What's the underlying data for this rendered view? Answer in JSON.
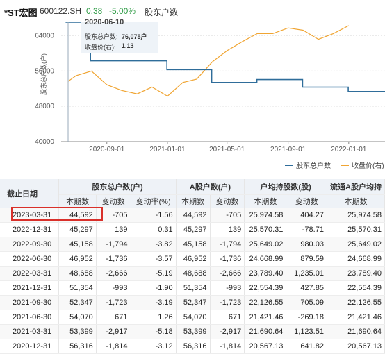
{
  "header": {
    "name": "*ST宏图",
    "code": "600122.SH",
    "price": "0.38",
    "change_pct": "-5.00%",
    "tab": "股东户数"
  },
  "tooltip": {
    "date": "2020-06-10",
    "holders_label": "股东总户数:",
    "holders_value": "76,075户",
    "price_label": "收盘价(右):",
    "price_value": "1.13"
  },
  "colors": {
    "holders_line": "#2f6d9a",
    "price_line": "#f0a533",
    "up": "#2e9b45",
    "highlight": "#d9302a"
  },
  "chart_data": {
    "type": "line",
    "ylabel": "股东总户数(户)",
    "yticks": [
      "64000",
      "56000",
      "48000",
      "40000"
    ],
    "ylim": [
      40000,
      68000
    ],
    "xticks": [
      "2020-09-01",
      "2021-01-01",
      "2021-05-01",
      "2021-09-01",
      "2022-01-01"
    ],
    "legend_position": "bottom-right",
    "series": [
      {
        "name": "股东总户数",
        "axis": "left",
        "step": true,
        "points": [
          [
            "2020-06-10",
            76075
          ],
          [
            "2020-07-30",
            58316
          ],
          [
            "2020-12-31",
            56316
          ],
          [
            "2021-03-31",
            53399
          ],
          [
            "2021-06-30",
            54070
          ],
          [
            "2021-09-30",
            52347
          ],
          [
            "2021-12-31",
            51354
          ],
          [
            "2022-03-31",
            48688
          ],
          [
            "2022-06-30",
            46952
          ]
        ]
      },
      {
        "name": "收盘价(右)",
        "axis": "right",
        "points": [
          [
            "2020-06-15",
            1.13
          ],
          [
            "2020-07-01",
            1.18
          ],
          [
            "2020-08-01",
            1.22
          ],
          [
            "2020-09-01",
            1.1
          ],
          [
            "2020-10-01",
            1.05
          ],
          [
            "2020-11-01",
            1.02
          ],
          [
            "2020-12-01",
            1.08
          ],
          [
            "2021-01-01",
            1.0
          ],
          [
            "2021-02-01",
            1.12
          ],
          [
            "2021-03-01",
            1.15
          ],
          [
            "2021-04-01",
            1.3
          ],
          [
            "2021-05-01",
            1.4
          ],
          [
            "2021-06-01",
            1.48
          ],
          [
            "2021-07-01",
            1.55
          ],
          [
            "2021-08-01",
            1.55
          ],
          [
            "2021-09-01",
            1.6
          ],
          [
            "2021-10-01",
            1.58
          ],
          [
            "2021-11-01",
            1.5
          ],
          [
            "2021-12-01",
            1.55
          ],
          [
            "2022-01-01",
            1.62
          ]
        ]
      }
    ]
  },
  "table": {
    "header_date": "截止日期",
    "groups": [
      "股东总户数(户)",
      "A股户数(户)",
      "户均持股数(股)",
      "流通A股户均持"
    ],
    "subheaders": [
      "本期数",
      "变动数",
      "变动率(%)",
      "本期数",
      "变动数",
      "本期数",
      "变动数",
      "本期数"
    ],
    "rows": [
      [
        "2023-03-31",
        "44,592",
        "-705",
        "-1.56",
        "44,592",
        "-705",
        "25,974.58",
        "404.27",
        "25,974.58"
      ],
      [
        "2022-12-31",
        "45,297",
        "139",
        "0.31",
        "45,297",
        "139",
        "25,570.31",
        "-78.71",
        "25,570.31"
      ],
      [
        "2022-09-30",
        "45,158",
        "-1,794",
        "-3.82",
        "45,158",
        "-1,794",
        "25,649.02",
        "980.03",
        "25,649.02"
      ],
      [
        "2022-06-30",
        "46,952",
        "-1,736",
        "-3.57",
        "46,952",
        "-1,736",
        "24,668.99",
        "879.59",
        "24,668.99"
      ],
      [
        "2022-03-31",
        "48,688",
        "-2,666",
        "-5.19",
        "48,688",
        "-2,666",
        "23,789.40",
        "1,235.01",
        "23,789.40"
      ],
      [
        "2021-12-31",
        "51,354",
        "-993",
        "-1.90",
        "51,354",
        "-993",
        "22,554.39",
        "427.85",
        "22,554.39"
      ],
      [
        "2021-09-30",
        "52,347",
        "-1,723",
        "-3.19",
        "52,347",
        "-1,723",
        "22,126.55",
        "705.09",
        "22,126.55"
      ],
      [
        "2021-06-30",
        "54,070",
        "671",
        "1.26",
        "54,070",
        "671",
        "21,421.46",
        "-269.18",
        "21,421.46"
      ],
      [
        "2021-03-31",
        "53,399",
        "-2,917",
        "-5.18",
        "53,399",
        "-2,917",
        "21,690.64",
        "1,123.51",
        "21,690.64"
      ],
      [
        "2020-12-31",
        "56,316",
        "-1,814",
        "-3.12",
        "56,316",
        "-1,814",
        "20,567.13",
        "641.82",
        "20,567.13"
      ]
    ]
  }
}
